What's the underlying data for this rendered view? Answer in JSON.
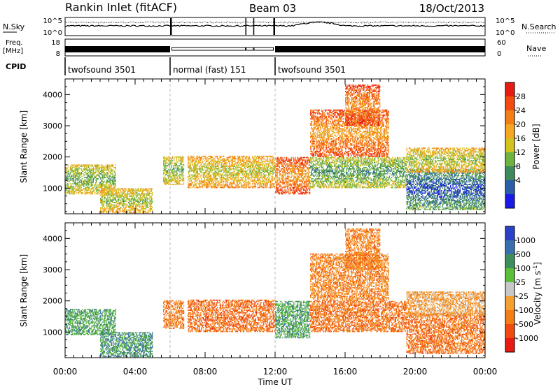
{
  "header": {
    "title": "Rankin Inlet (fitACF)",
    "beam": "Beam 03",
    "date": "18/Oct/2013"
  },
  "status_panels": {
    "nsky_label": "N.Sky",
    "nsky_ticks": [
      "10^5",
      "10^0"
    ],
    "nsearch_label": "N.Search",
    "nsearch_ticks": [
      "10^5",
      "10^0"
    ],
    "freq_label": "Freq.",
    "freq_unit": "[MHz]",
    "freq_ticks": [
      "18",
      "8"
    ],
    "nave_label": "Nave",
    "nave_ticks": [
      "60",
      "0"
    ],
    "cpid_label": "CPID",
    "cpid_segments": [
      {
        "label": "twofsound 3501",
        "start_h": 0,
        "end_h": 6
      },
      {
        "label": "normal (fast) 151",
        "start_h": 6,
        "end_h": 12
      },
      {
        "label": "twofsound 3501",
        "start_h": 12,
        "end_h": 24
      }
    ]
  },
  "chart_data": [
    {
      "type": "heatmap",
      "quantity": "Power",
      "ylabel": "Slant Range [km]",
      "yticks": [
        1000,
        2000,
        3000,
        4000
      ],
      "ylim": [
        180,
        4500
      ],
      "xlim": [
        0,
        24
      ],
      "colorbar_label": "Power [dB]",
      "colorbar_ticks": [
        "28",
        "24",
        "20",
        "16",
        "12",
        "8",
        "4"
      ],
      "colorbar_colors": [
        "#e81a14",
        "#f34a10",
        "#f47e14",
        "#f5a623",
        "#d4c21e",
        "#6fb440",
        "#3e8a5c",
        "#2b5da8",
        "#1a1ae6"
      ],
      "echo_regions": [
        {
          "t0": 0.0,
          "t1": 2.9,
          "r_lo": 800,
          "r_hi": 1750,
          "level": 0.68
        },
        {
          "t0": 2.0,
          "t1": 5.0,
          "r_lo": 200,
          "r_hi": 1000,
          "level": 0.62
        },
        {
          "t0": 5.6,
          "t1": 6.8,
          "r_lo": 1100,
          "r_hi": 2000,
          "level": 0.66
        },
        {
          "t0": 7.0,
          "t1": 12.0,
          "r_lo": 1000,
          "r_hi": 2050,
          "level": 0.55
        },
        {
          "t0": 12.0,
          "t1": 14.0,
          "r_lo": 800,
          "r_hi": 2000,
          "level": 0.35
        },
        {
          "t0": 14.0,
          "t1": 19.5,
          "r_lo": 1000,
          "r_hi": 2000,
          "level": 0.74
        },
        {
          "t0": 14.0,
          "t1": 18.5,
          "r_lo": 2000,
          "r_hi": 3500,
          "level": 0.36
        },
        {
          "t0": 16.0,
          "t1": 18.0,
          "r_lo": 3000,
          "r_hi": 4300,
          "level": 0.32
        },
        {
          "t0": 19.5,
          "t1": 24.0,
          "r_lo": 300,
          "r_hi": 1600,
          "level": 0.92
        },
        {
          "t0": 19.5,
          "t1": 24.0,
          "r_lo": 1500,
          "r_hi": 2300,
          "level": 0.6
        }
      ]
    },
    {
      "type": "heatmap",
      "quantity": "Velocity",
      "ylabel": "Slant Range [km]",
      "yticks": [
        1000,
        2000,
        3000,
        4000
      ],
      "ylim": [
        180,
        4500
      ],
      "xlim": [
        0,
        24
      ],
      "xlabel": "Time UT",
      "xticks": [
        "00:00",
        "04:00",
        "08:00",
        "12:00",
        "16:00",
        "20:00",
        "00:00"
      ],
      "colorbar_label": "Velocity [m s",
      "colorbar_label_exp": "-1",
      "colorbar_label_end": "]",
      "colorbar_ticks": [
        "1000",
        "500",
        "100",
        "25",
        "-25",
        "-100",
        "-500",
        "-1000"
      ],
      "colorbar_colors": [
        "#2b40c8",
        "#3a6fae",
        "#3f8f5c",
        "#5cbf3a",
        "#c8c8c8",
        "#f5a030",
        "#f47e14",
        "#f04a10",
        "#e81a14"
      ],
      "echo_regions": [
        {
          "t0": 0.0,
          "t1": 2.9,
          "r_lo": 900,
          "r_hi": 1750,
          "level": 0.3
        },
        {
          "t0": 2.0,
          "t1": 5.0,
          "r_lo": 200,
          "r_hi": 1000,
          "level": 0.25
        },
        {
          "t0": 5.6,
          "t1": 6.8,
          "r_lo": 1100,
          "r_hi": 2000,
          "level": 0.75
        },
        {
          "t0": 7.0,
          "t1": 12.0,
          "r_lo": 1000,
          "r_hi": 2050,
          "level": 0.8
        },
        {
          "t0": 12.0,
          "t1": 14.0,
          "r_lo": 800,
          "r_hi": 2000,
          "level": 0.3
        },
        {
          "t0": 14.0,
          "t1": 19.5,
          "r_lo": 1000,
          "r_hi": 2000,
          "level": 0.78
        },
        {
          "t0": 14.0,
          "t1": 18.5,
          "r_lo": 2000,
          "r_hi": 3500,
          "level": 0.72
        },
        {
          "t0": 16.0,
          "t1": 18.0,
          "r_lo": 3000,
          "r_hi": 4300,
          "level": 0.74
        },
        {
          "t0": 19.5,
          "t1": 24.0,
          "r_lo": 300,
          "r_hi": 1600,
          "level": 0.78
        },
        {
          "t0": 19.5,
          "t1": 24.0,
          "r_lo": 1500,
          "r_hi": 2300,
          "level": 0.65
        }
      ]
    }
  ]
}
